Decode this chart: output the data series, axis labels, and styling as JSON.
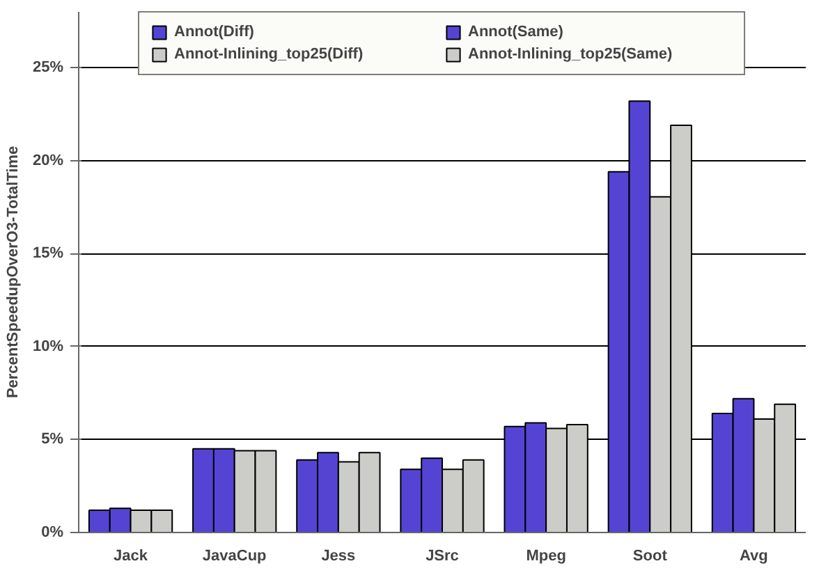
{
  "chart_data": {
    "type": "bar",
    "ylabel": "PercentSpeedupOverO3-TotalTime",
    "categories": [
      "Jack",
      "JavaCup",
      "Jess",
      "JSrc",
      "Mpeg",
      "Soot",
      "Avg"
    ],
    "series": [
      {
        "name": "Annot(Diff)",
        "color": "#5544d4",
        "values": [
          1.2,
          4.5,
          3.9,
          3.4,
          5.7,
          19.4,
          6.4
        ]
      },
      {
        "name": "Annot(Same)",
        "color": "#5544d4",
        "values": [
          1.3,
          4.5,
          4.3,
          4.0,
          5.9,
          23.2,
          7.2
        ]
      },
      {
        "name": "Annot-Inlining_top25(Diff)",
        "color": "#cccdc8",
        "values": [
          1.2,
          4.4,
          3.8,
          3.4,
          5.6,
          18.05,
          6.1
        ]
      },
      {
        "name": "Annot-Inlining_top25(Same)",
        "color": "#cccdc8",
        "values": [
          1.2,
          4.4,
          4.3,
          3.9,
          5.8,
          21.9,
          6.9
        ]
      }
    ],
    "ylim": [
      0,
      28
    ],
    "yticks": [
      {
        "value": 0,
        "label": "0%"
      },
      {
        "value": 5,
        "label": "5%"
      },
      {
        "value": 10,
        "label": "10%"
      },
      {
        "value": 15,
        "label": "15%"
      },
      {
        "value": 20,
        "label": "20%"
      },
      {
        "value": 25,
        "label": "25%"
      }
    ],
    "grid": "y",
    "legend": "top"
  }
}
